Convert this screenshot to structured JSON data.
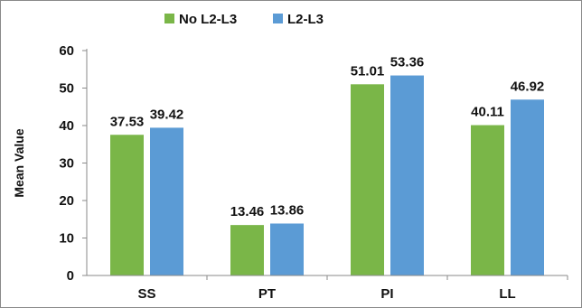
{
  "chart_data": {
    "type": "bar",
    "title": "",
    "xlabel": "",
    "ylabel": "Mean Value",
    "categories": [
      "SS",
      "PT",
      "PI",
      "LL"
    ],
    "series": [
      {
        "name": "No L2-L3",
        "color": "#7ab648",
        "values": [
          37.53,
          13.46,
          51.01,
          40.11
        ],
        "labels": [
          "37.53",
          "13.46",
          "51.01",
          "40.11"
        ]
      },
      {
        "name": "L2-L3",
        "color": "#5b9bd5",
        "values": [
          39.42,
          13.86,
          53.36,
          46.92
        ],
        "labels": [
          "39.42",
          "13.86",
          "53.36",
          "46.92"
        ]
      }
    ],
    "ylim": [
      0,
      60
    ],
    "yticks": [
      0,
      10,
      20,
      30,
      40,
      50,
      60
    ],
    "grid": false,
    "legend_position": "top"
  }
}
